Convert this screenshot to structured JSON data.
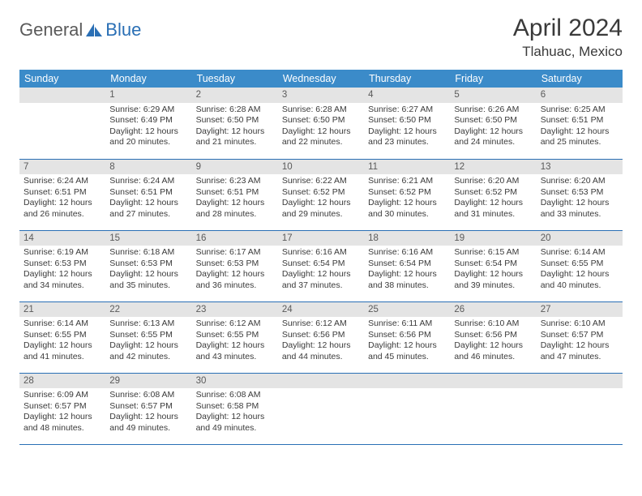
{
  "logo": {
    "prefix": "General",
    "suffix": "Blue"
  },
  "title": "April 2024",
  "location": "Tlahuac, Mexico",
  "header_bg": "#3b8bc9",
  "header_fg": "#ffffff",
  "rule_color": "#2a6fb5",
  "daynum_bg": "#e4e4e4",
  "page_bg": "#ffffff",
  "text_color": "#3a3a3a",
  "title_fontsize": 30,
  "location_fontsize": 17,
  "header_fontsize": 12.5,
  "body_fontsize": 10.5,
  "weekdays": [
    "Sunday",
    "Monday",
    "Tuesday",
    "Wednesday",
    "Thursday",
    "Friday",
    "Saturday"
  ],
  "weeks": [
    [
      {
        "n": "",
        "sr": "",
        "ss": "",
        "dl": ""
      },
      {
        "n": "1",
        "sr": "6:29 AM",
        "ss": "6:49 PM",
        "dl": "12 hours and 20 minutes."
      },
      {
        "n": "2",
        "sr": "6:28 AM",
        "ss": "6:50 PM",
        "dl": "12 hours and 21 minutes."
      },
      {
        "n": "3",
        "sr": "6:28 AM",
        "ss": "6:50 PM",
        "dl": "12 hours and 22 minutes."
      },
      {
        "n": "4",
        "sr": "6:27 AM",
        "ss": "6:50 PM",
        "dl": "12 hours and 23 minutes."
      },
      {
        "n": "5",
        "sr": "6:26 AM",
        "ss": "6:50 PM",
        "dl": "12 hours and 24 minutes."
      },
      {
        "n": "6",
        "sr": "6:25 AM",
        "ss": "6:51 PM",
        "dl": "12 hours and 25 minutes."
      }
    ],
    [
      {
        "n": "7",
        "sr": "6:24 AM",
        "ss": "6:51 PM",
        "dl": "12 hours and 26 minutes."
      },
      {
        "n": "8",
        "sr": "6:24 AM",
        "ss": "6:51 PM",
        "dl": "12 hours and 27 minutes."
      },
      {
        "n": "9",
        "sr": "6:23 AM",
        "ss": "6:51 PM",
        "dl": "12 hours and 28 minutes."
      },
      {
        "n": "10",
        "sr": "6:22 AM",
        "ss": "6:52 PM",
        "dl": "12 hours and 29 minutes."
      },
      {
        "n": "11",
        "sr": "6:21 AM",
        "ss": "6:52 PM",
        "dl": "12 hours and 30 minutes."
      },
      {
        "n": "12",
        "sr": "6:20 AM",
        "ss": "6:52 PM",
        "dl": "12 hours and 31 minutes."
      },
      {
        "n": "13",
        "sr": "6:20 AM",
        "ss": "6:53 PM",
        "dl": "12 hours and 33 minutes."
      }
    ],
    [
      {
        "n": "14",
        "sr": "6:19 AM",
        "ss": "6:53 PM",
        "dl": "12 hours and 34 minutes."
      },
      {
        "n": "15",
        "sr": "6:18 AM",
        "ss": "6:53 PM",
        "dl": "12 hours and 35 minutes."
      },
      {
        "n": "16",
        "sr": "6:17 AM",
        "ss": "6:53 PM",
        "dl": "12 hours and 36 minutes."
      },
      {
        "n": "17",
        "sr": "6:16 AM",
        "ss": "6:54 PM",
        "dl": "12 hours and 37 minutes."
      },
      {
        "n": "18",
        "sr": "6:16 AM",
        "ss": "6:54 PM",
        "dl": "12 hours and 38 minutes."
      },
      {
        "n": "19",
        "sr": "6:15 AM",
        "ss": "6:54 PM",
        "dl": "12 hours and 39 minutes."
      },
      {
        "n": "20",
        "sr": "6:14 AM",
        "ss": "6:55 PM",
        "dl": "12 hours and 40 minutes."
      }
    ],
    [
      {
        "n": "21",
        "sr": "6:14 AM",
        "ss": "6:55 PM",
        "dl": "12 hours and 41 minutes."
      },
      {
        "n": "22",
        "sr": "6:13 AM",
        "ss": "6:55 PM",
        "dl": "12 hours and 42 minutes."
      },
      {
        "n": "23",
        "sr": "6:12 AM",
        "ss": "6:55 PM",
        "dl": "12 hours and 43 minutes."
      },
      {
        "n": "24",
        "sr": "6:12 AM",
        "ss": "6:56 PM",
        "dl": "12 hours and 44 minutes."
      },
      {
        "n": "25",
        "sr": "6:11 AM",
        "ss": "6:56 PM",
        "dl": "12 hours and 45 minutes."
      },
      {
        "n": "26",
        "sr": "6:10 AM",
        "ss": "6:56 PM",
        "dl": "12 hours and 46 minutes."
      },
      {
        "n": "27",
        "sr": "6:10 AM",
        "ss": "6:57 PM",
        "dl": "12 hours and 47 minutes."
      }
    ],
    [
      {
        "n": "28",
        "sr": "6:09 AM",
        "ss": "6:57 PM",
        "dl": "12 hours and 48 minutes."
      },
      {
        "n": "29",
        "sr": "6:08 AM",
        "ss": "6:57 PM",
        "dl": "12 hours and 49 minutes."
      },
      {
        "n": "30",
        "sr": "6:08 AM",
        "ss": "6:58 PM",
        "dl": "12 hours and 49 minutes."
      },
      {
        "n": "",
        "sr": "",
        "ss": "",
        "dl": ""
      },
      {
        "n": "",
        "sr": "",
        "ss": "",
        "dl": ""
      },
      {
        "n": "",
        "sr": "",
        "ss": "",
        "dl": ""
      },
      {
        "n": "",
        "sr": "",
        "ss": "",
        "dl": ""
      }
    ]
  ]
}
